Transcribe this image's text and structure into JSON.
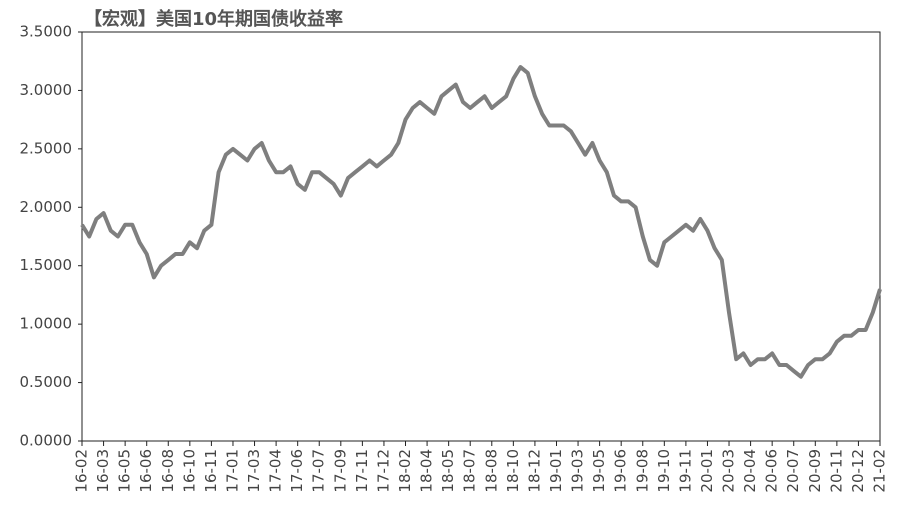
{
  "chart_data": {
    "type": "line",
    "title": "【宏观】美国10年期国债收益率",
    "categories": [
      "16-02",
      null,
      null,
      "16-03",
      null,
      null,
      "16-05",
      null,
      null,
      "16-06",
      null,
      null,
      "16-08",
      null,
      null,
      "16-10",
      null,
      null,
      "16-11",
      null,
      null,
      "17-01",
      null,
      null,
      "17-03",
      null,
      null,
      "17-04",
      null,
      null,
      "17-06",
      null,
      null,
      "17-07",
      null,
      null,
      "17-09",
      null,
      null,
      "17-11",
      null,
      null,
      "17-12",
      null,
      null,
      "18-02",
      null,
      null,
      "18-04",
      null,
      null,
      "18-05",
      null,
      null,
      "18-07",
      null,
      null,
      "18-08",
      null,
      null,
      "18-10",
      null,
      null,
      "18-12",
      null,
      null,
      "19-01",
      null,
      null,
      "19-03",
      null,
      null,
      "19-05",
      null,
      null,
      "19-06",
      null,
      null,
      "19-08",
      null,
      null,
      "19-10",
      null,
      null,
      "19-11",
      null,
      null,
      "20-01",
      null,
      null,
      "20-03",
      null,
      null,
      "20-04",
      null,
      null,
      "20-06",
      null,
      null,
      "20-07",
      null,
      null,
      "20-09",
      null,
      null,
      "20-11",
      null,
      null,
      "20-12",
      null,
      null,
      "21-02"
    ],
    "values": [
      1.85,
      1.75,
      1.9,
      1.95,
      1.8,
      1.75,
      1.85,
      1.85,
      1.7,
      1.6,
      1.4,
      1.5,
      1.55,
      1.6,
      1.6,
      1.7,
      1.65,
      1.8,
      1.85,
      2.3,
      2.45,
      2.5,
      2.45,
      2.4,
      2.5,
      2.55,
      2.4,
      2.3,
      2.3,
      2.35,
      2.2,
      2.15,
      2.3,
      2.3,
      2.25,
      2.2,
      2.1,
      2.25,
      2.3,
      2.35,
      2.4,
      2.35,
      2.4,
      2.45,
      2.55,
      2.75,
      2.85,
      2.9,
      2.85,
      2.8,
      2.95,
      3.0,
      3.05,
      2.9,
      2.85,
      2.9,
      2.95,
      2.85,
      2.9,
      2.95,
      3.1,
      3.2,
      3.15,
      2.95,
      2.8,
      2.7,
      2.7,
      2.7,
      2.65,
      2.55,
      2.45,
      2.55,
      2.4,
      2.3,
      2.1,
      2.05,
      2.05,
      2.0,
      1.75,
      1.55,
      1.5,
      1.7,
      1.75,
      1.8,
      1.85,
      1.8,
      1.9,
      1.8,
      1.65,
      1.55,
      1.1,
      0.7,
      0.75,
      0.65,
      0.7,
      0.7,
      0.75,
      0.65,
      0.65,
      0.6,
      0.55,
      0.65,
      0.7,
      0.7,
      0.75,
      0.85,
      0.9,
      0.9,
      0.95,
      0.95,
      1.1,
      1.3
    ],
    "color": "#7f7f7f",
    "ylim": [
      0,
      3.5
    ],
    "yticks": [
      {
        "value": 0,
        "label": "0.0000"
      },
      {
        "value": 0.5,
        "label": "0.5000"
      },
      {
        "value": 1,
        "label": "1.0000"
      },
      {
        "value": 1.5,
        "label": "1.5000"
      },
      {
        "value": 2,
        "label": "2.0000"
      },
      {
        "value": 2.5,
        "label": "2.5000"
      },
      {
        "value": 3,
        "label": "3.0000"
      },
      {
        "value": 3.5,
        "label": "3.5000"
      }
    ]
  }
}
